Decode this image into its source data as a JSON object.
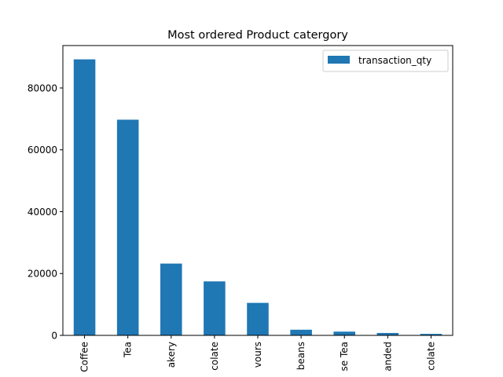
{
  "chart_data": {
    "type": "bar",
    "title": "Most ordered Product catergory",
    "xlabel": "",
    "ylabel": "",
    "categories": [
      "Coffee",
      "Tea",
      "akery",
      "colate",
      "vours",
      "beans",
      "se Tea",
      "anded",
      "colate"
    ],
    "series": [
      {
        "name": "transaction_qty",
        "color": "#1f77b4",
        "values": [
          89250,
          69737,
          23214,
          17457,
          10511,
          1828,
          1210,
          776,
          487
        ]
      }
    ],
    "yticks": [
      0,
      20000,
      40000,
      60000,
      80000
    ],
    "ylim": [
      0,
      93712
    ],
    "legend_position": "upper right",
    "grid": false
  }
}
